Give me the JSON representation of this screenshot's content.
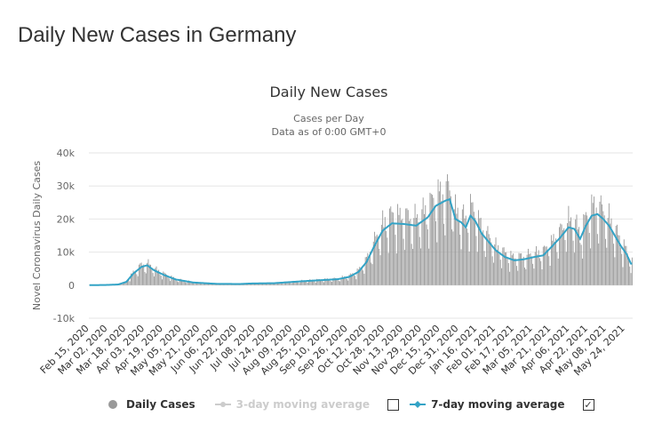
{
  "page": {
    "title": "Daily New Cases in Germany"
  },
  "chart_data": {
    "type": "bar",
    "title": "Daily New Cases",
    "subtitle_line1": "Cases per Day",
    "subtitle_line2": "Data as of 0:00 GMT+0",
    "ylabel": "Novel Coronavirus Daily Cases",
    "xlabel": "",
    "ylim": [
      -10000,
      40000
    ],
    "yticks": [
      {
        "value": -10000,
        "label": "-10k"
      },
      {
        "value": 0,
        "label": "0"
      },
      {
        "value": 10000,
        "label": "10k"
      },
      {
        "value": 20000,
        "label": "20k"
      },
      {
        "value": 30000,
        "label": "30k"
      },
      {
        "value": 40000,
        "label": "40k"
      }
    ],
    "x_start": "2020-02-15",
    "x_end": "2021-05-30",
    "xtick_labels": [
      "Feb 15, 2020",
      "Mar 02, 2020",
      "Mar 18, 2020",
      "Apr 03, 2020",
      "Apr 19, 2020",
      "May 05, 2020",
      "May 21, 2020",
      "Jun 06, 2020",
      "Jun 22, 2020",
      "Jul 08, 2020",
      "Jul 24, 2020",
      "Aug 09, 2020",
      "Aug 25, 2020",
      "Sep 10, 2020",
      "Sep 26, 2020",
      "Oct 12, 2020",
      "Oct 28, 2020",
      "Nov 13, 2020",
      "Nov 29, 2020",
      "Dec 15, 2020",
      "Dec 31, 2020",
      "Jan 16, 2021",
      "Feb 01, 2021",
      "Feb 17, 2021",
      "Mar 05, 2021",
      "Mar 21, 2021",
      "Apr 06, 2021",
      "Apr 22, 2021",
      "May 08, 2021",
      "May 24, 2021"
    ],
    "series": [
      {
        "name": "Daily Cases",
        "kind": "bar",
        "color": "#999999"
      },
      {
        "name": "3-day moving average",
        "kind": "line",
        "color": "#cccccc",
        "enabled": false
      },
      {
        "name": "7-day moving average",
        "kind": "line",
        "color": "#33a3c6",
        "enabled": true
      }
    ],
    "moving_avg_7day_keypoints": [
      {
        "day": 0,
        "value": 0
      },
      {
        "day": 14,
        "value": 50
      },
      {
        "day": 25,
        "value": 200
      },
      {
        "day": 32,
        "value": 1000
      },
      {
        "day": 38,
        "value": 3500
      },
      {
        "day": 45,
        "value": 5500
      },
      {
        "day": 50,
        "value": 6000
      },
      {
        "day": 56,
        "value": 4500
      },
      {
        "day": 65,
        "value": 3000
      },
      {
        "day": 75,
        "value": 1700
      },
      {
        "day": 90,
        "value": 800
      },
      {
        "day": 110,
        "value": 400
      },
      {
        "day": 130,
        "value": 350
      },
      {
        "day": 140,
        "value": 500
      },
      {
        "day": 160,
        "value": 600
      },
      {
        "day": 185,
        "value": 1200
      },
      {
        "day": 200,
        "value": 1500
      },
      {
        "day": 215,
        "value": 1800
      },
      {
        "day": 225,
        "value": 2500
      },
      {
        "day": 233,
        "value": 4000
      },
      {
        "day": 240,
        "value": 7000
      },
      {
        "day": 247,
        "value": 12000
      },
      {
        "day": 254,
        "value": 16500
      },
      {
        "day": 262,
        "value": 18700
      },
      {
        "day": 272,
        "value": 18500
      },
      {
        "day": 283,
        "value": 18000
      },
      {
        "day": 293,
        "value": 20500
      },
      {
        "day": 300,
        "value": 24000
      },
      {
        "day": 308,
        "value": 25500
      },
      {
        "day": 312,
        "value": 26000
      },
      {
        "day": 317,
        "value": 20000
      },
      {
        "day": 322,
        "value": 19000
      },
      {
        "day": 326,
        "value": 17500
      },
      {
        "day": 330,
        "value": 21000
      },
      {
        "day": 334,
        "value": 19500
      },
      {
        "day": 340,
        "value": 15500
      },
      {
        "day": 346,
        "value": 13000
      },
      {
        "day": 352,
        "value": 10500
      },
      {
        "day": 360,
        "value": 8500
      },
      {
        "day": 368,
        "value": 7500
      },
      {
        "day": 376,
        "value": 7800
      },
      {
        "day": 385,
        "value": 8500
      },
      {
        "day": 393,
        "value": 9000
      },
      {
        "day": 400,
        "value": 11500
      },
      {
        "day": 408,
        "value": 14500
      },
      {
        "day": 415,
        "value": 17500
      },
      {
        "day": 420,
        "value": 17000
      },
      {
        "day": 425,
        "value": 14000
      },
      {
        "day": 430,
        "value": 18000
      },
      {
        "day": 435,
        "value": 21000
      },
      {
        "day": 440,
        "value": 21500
      },
      {
        "day": 445,
        "value": 20000
      },
      {
        "day": 450,
        "value": 18000
      },
      {
        "day": 455,
        "value": 15000
      },
      {
        "day": 460,
        "value": 12000
      },
      {
        "day": 465,
        "value": 9500
      },
      {
        "day": 469,
        "value": 6500
      }
    ],
    "legend_placement": "bottom-center"
  },
  "legend": {
    "daily_label": "Daily Cases",
    "avg3_label": "3-day moving average",
    "avg7_label": "7-day moving average",
    "avg3_checked": false,
    "avg7_checked": true,
    "checkmark": "✓"
  }
}
